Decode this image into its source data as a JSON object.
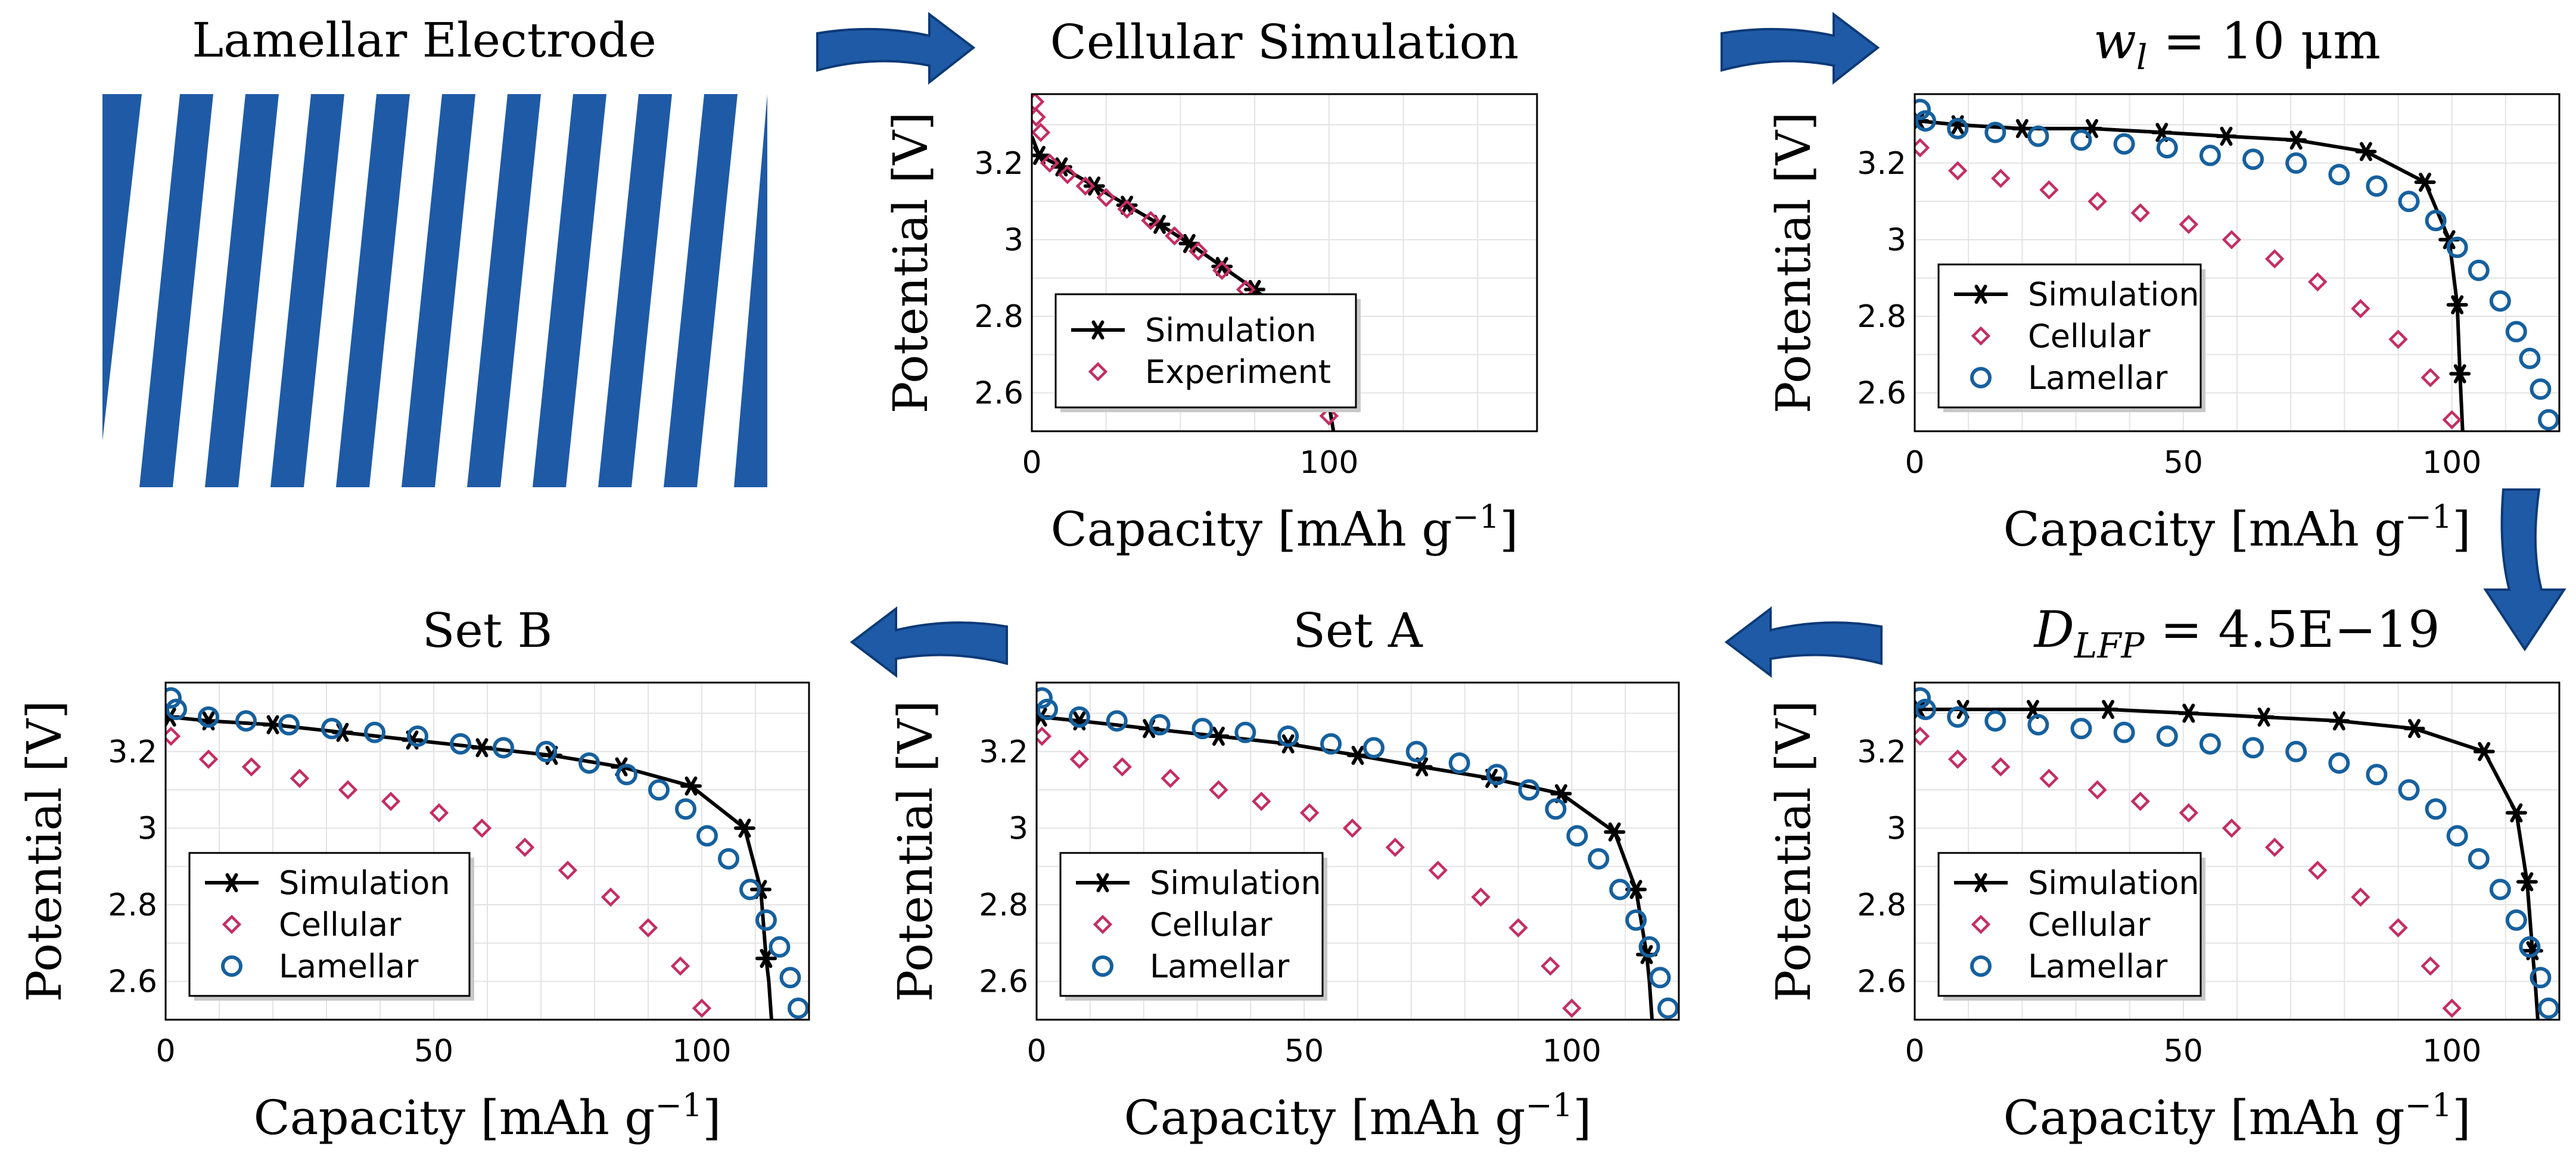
{
  "colors": {
    "blue": "#1f5aa6",
    "sim": "#000000",
    "cellular": "#c42d63",
    "lamellar": "#16609e",
    "grid": "#e3e3e3"
  },
  "illustration": {
    "title": "Lamellar Electrode"
  },
  "chart_data": [
    {
      "type": "scatter",
      "title": "Cellular Simulation",
      "xlabel": "Capacity [mAh g⁻¹]",
      "ylabel": "Potential [V]",
      "xlim": [
        0,
        170
      ],
      "ylim": [
        2.5,
        3.38
      ],
      "xticks": [
        0,
        100
      ],
      "yticks": [
        "2.6",
        "2.8",
        "3",
        "3.2"
      ],
      "grid": true,
      "legend_position": "bottom-left",
      "series": [
        {
          "name": "Simulation",
          "marker": "star",
          "line": true,
          "x": [
            0,
            2.5,
            10,
            21,
            32,
            43,
            53,
            64,
            75,
            86,
            94,
            99,
            101.5
          ],
          "y": [
            3.27,
            3.22,
            3.19,
            3.14,
            3.09,
            3.04,
            2.99,
            2.93,
            2.87,
            2.8,
            2.72,
            2.62,
            2.5
          ],
          "marker_x": [
            2.5,
            10,
            21,
            32,
            43,
            53,
            64,
            75,
            86,
            94,
            99
          ],
          "marker_y": [
            3.22,
            3.19,
            3.14,
            3.09,
            3.04,
            2.99,
            2.93,
            2.87,
            2.8,
            2.72,
            2.62
          ]
        },
        {
          "name": "Experiment",
          "marker": "diamond",
          "x": [
            1,
            1.5,
            3,
            6,
            12,
            18,
            25,
            32,
            40,
            48,
            56,
            64,
            72,
            80,
            88,
            95,
            100
          ],
          "y": [
            3.36,
            3.32,
            3.28,
            3.2,
            3.17,
            3.14,
            3.11,
            3.08,
            3.05,
            3.01,
            2.97,
            2.92,
            2.87,
            2.81,
            2.74,
            2.64,
            2.54
          ]
        }
      ]
    },
    {
      "type": "scatter",
      "title": "w_l = 10 μm",
      "xlabel": "Capacity [mAh g⁻¹]",
      "ylabel": "Potential [V]",
      "xlim": [
        0,
        120
      ],
      "ylim": [
        2.5,
        3.38
      ],
      "xticks": [
        0,
        50,
        100
      ],
      "yticks": [
        "2.6",
        "2.8",
        "3",
        "3.2"
      ],
      "grid": true,
      "legend_position": "bottom-left",
      "series": [
        {
          "name": "Simulation",
          "marker": "star",
          "line": true,
          "x": [
            0,
            0.7,
            8,
            20,
            33,
            46,
            58,
            71,
            84,
            95,
            99.5,
            101,
            101.5,
            102
          ],
          "y": [
            3.32,
            3.31,
            3.3,
            3.29,
            3.29,
            3.28,
            3.27,
            3.26,
            3.23,
            3.15,
            3.0,
            2.83,
            2.65,
            2.5
          ],
          "marker_x": [
            0.7,
            8,
            20,
            33,
            46,
            58,
            71,
            84,
            95,
            99.5,
            101,
            101.5
          ],
          "marker_y": [
            3.31,
            3.3,
            3.29,
            3.29,
            3.28,
            3.27,
            3.26,
            3.23,
            3.15,
            3.0,
            2.83,
            2.65
          ]
        },
        {
          "name": "Cellular",
          "marker": "diamond",
          "x": [
            1,
            8,
            16,
            25,
            34,
            42,
            51,
            59,
            67,
            75,
            83,
            90,
            96,
            100
          ],
          "y": [
            3.24,
            3.18,
            3.16,
            3.13,
            3.1,
            3.07,
            3.04,
            3.0,
            2.95,
            2.89,
            2.82,
            2.74,
            2.64,
            2.53
          ]
        },
        {
          "name": "Lamellar",
          "marker": "circle",
          "x": [
            1,
            2,
            8,
            15,
            23,
            31,
            39,
            47,
            55,
            63,
            71,
            79,
            86,
            92,
            97,
            101,
            105,
            109,
            112,
            114.5,
            116.5,
            118
          ],
          "y": [
            3.34,
            3.31,
            3.29,
            3.28,
            3.27,
            3.26,
            3.25,
            3.24,
            3.22,
            3.21,
            3.2,
            3.17,
            3.14,
            3.1,
            3.05,
            2.98,
            2.92,
            2.84,
            2.76,
            2.69,
            2.61,
            2.53
          ]
        }
      ]
    },
    {
      "type": "scatter",
      "title": "D_LFP = 4.5E−19",
      "xlabel": "Capacity [mAh g⁻¹]",
      "ylabel": "Potential [V]",
      "xlim": [
        0,
        120
      ],
      "ylim": [
        2.5,
        3.38
      ],
      "xticks": [
        0,
        50,
        100
      ],
      "yticks": [
        "2.6",
        "2.8",
        "3",
        "3.2"
      ],
      "grid": true,
      "legend_position": "bottom-left",
      "series": [
        {
          "name": "Simulation",
          "marker": "star",
          "line": true,
          "x": [
            0,
            0.8,
            9,
            22,
            36,
            51,
            65,
            79,
            93,
            106,
            112,
            114,
            115,
            115.5,
            116
          ],
          "y": [
            3.32,
            3.31,
            3.31,
            3.31,
            3.31,
            3.3,
            3.29,
            3.28,
            3.26,
            3.2,
            3.04,
            2.86,
            2.68,
            2.6,
            2.5
          ],
          "marker_x": [
            0.8,
            9,
            22,
            36,
            51,
            65,
            79,
            93,
            106,
            112,
            114,
            115
          ],
          "marker_y": [
            3.31,
            3.31,
            3.31,
            3.31,
            3.3,
            3.29,
            3.28,
            3.26,
            3.2,
            3.04,
            2.86,
            2.68
          ]
        },
        {
          "name": "Cellular",
          "marker": "diamond",
          "x": [
            1,
            8,
            16,
            25,
            34,
            42,
            51,
            59,
            67,
            75,
            83,
            90,
            96,
            100
          ],
          "y": [
            3.24,
            3.18,
            3.16,
            3.13,
            3.1,
            3.07,
            3.04,
            3.0,
            2.95,
            2.89,
            2.82,
            2.74,
            2.64,
            2.53
          ]
        },
        {
          "name": "Lamellar",
          "marker": "circle",
          "x": [
            1,
            2,
            8,
            15,
            23,
            31,
            39,
            47,
            55,
            63,
            71,
            79,
            86,
            92,
            97,
            101,
            105,
            109,
            112,
            114.5,
            116.5,
            118
          ],
          "y": [
            3.34,
            3.31,
            3.29,
            3.28,
            3.27,
            3.26,
            3.25,
            3.24,
            3.22,
            3.21,
            3.2,
            3.17,
            3.14,
            3.1,
            3.05,
            2.98,
            2.92,
            2.84,
            2.76,
            2.69,
            2.61,
            2.53
          ]
        }
      ]
    },
    {
      "type": "scatter",
      "title": "Set A",
      "xlabel": "Capacity [mAh g⁻¹]",
      "ylabel": "Potential [V]",
      "xlim": [
        0,
        120
      ],
      "ylim": [
        2.5,
        3.38
      ],
      "xticks": [
        0,
        50,
        100
      ],
      "yticks": [
        "2.6",
        "2.8",
        "3",
        "3.2"
      ],
      "grid": true,
      "legend_position": "bottom-left",
      "series": [
        {
          "name": "Simulation",
          "marker": "star",
          "line": true,
          "x": [
            0,
            0.8,
            8,
            21,
            34,
            47,
            60,
            72,
            85,
            98,
            108,
            112,
            114,
            114.5,
            115
          ],
          "y": [
            3.3,
            3.29,
            3.28,
            3.26,
            3.24,
            3.22,
            3.19,
            3.16,
            3.13,
            3.09,
            2.99,
            2.84,
            2.67,
            2.6,
            2.5
          ],
          "marker_x": [
            0.8,
            8,
            21,
            34,
            47,
            60,
            72,
            85,
            98,
            108,
            112,
            114
          ],
          "marker_y": [
            3.29,
            3.28,
            3.26,
            3.24,
            3.22,
            3.19,
            3.16,
            3.13,
            3.09,
            2.99,
            2.84,
            2.67
          ]
        },
        {
          "name": "Cellular",
          "marker": "diamond",
          "x": [
            1,
            8,
            16,
            25,
            34,
            42,
            51,
            59,
            67,
            75,
            83,
            90,
            96,
            100
          ],
          "y": [
            3.24,
            3.18,
            3.16,
            3.13,
            3.1,
            3.07,
            3.04,
            3.0,
            2.95,
            2.89,
            2.82,
            2.74,
            2.64,
            2.53
          ]
        },
        {
          "name": "Lamellar",
          "marker": "circle",
          "x": [
            1,
            2,
            8,
            15,
            23,
            31,
            39,
            47,
            55,
            63,
            71,
            79,
            86,
            92,
            97,
            101,
            105,
            109,
            112,
            114.5,
            116.5,
            118
          ],
          "y": [
            3.34,
            3.31,
            3.29,
            3.28,
            3.27,
            3.26,
            3.25,
            3.24,
            3.22,
            3.21,
            3.2,
            3.17,
            3.14,
            3.1,
            3.05,
            2.98,
            2.92,
            2.84,
            2.76,
            2.69,
            2.61,
            2.53
          ]
        }
      ]
    },
    {
      "type": "scatter",
      "title": "Set B",
      "xlabel": "Capacity [mAh g⁻¹]",
      "ylabel": "Potential [V]",
      "xlim": [
        0,
        120
      ],
      "ylim": [
        2.5,
        3.38
      ],
      "xticks": [
        0,
        50,
        100
      ],
      "yticks": [
        "2.6",
        "2.8",
        "3",
        "3.2"
      ],
      "grid": true,
      "legend_position": "bottom-left",
      "series": [
        {
          "name": "Simulation",
          "marker": "star",
          "line": true,
          "x": [
            0,
            0.8,
            8,
            20,
            33,
            46,
            59,
            72,
            85,
            98,
            108,
            111,
            112,
            112.5,
            113
          ],
          "y": [
            3.3,
            3.29,
            3.28,
            3.27,
            3.25,
            3.23,
            3.21,
            3.19,
            3.16,
            3.11,
            3.0,
            2.84,
            2.66,
            2.6,
            2.5
          ],
          "marker_x": [
            0.8,
            8,
            20,
            33,
            46,
            59,
            72,
            85,
            98,
            108,
            111,
            112
          ],
          "marker_y": [
            3.29,
            3.28,
            3.27,
            3.25,
            3.23,
            3.21,
            3.19,
            3.16,
            3.11,
            3.0,
            2.84,
            2.66
          ]
        },
        {
          "name": "Cellular",
          "marker": "diamond",
          "x": [
            1,
            8,
            16,
            25,
            34,
            42,
            51,
            59,
            67,
            75,
            83,
            90,
            96,
            100
          ],
          "y": [
            3.24,
            3.18,
            3.16,
            3.13,
            3.1,
            3.07,
            3.04,
            3.0,
            2.95,
            2.89,
            2.82,
            2.74,
            2.64,
            2.53
          ]
        },
        {
          "name": "Lamellar",
          "marker": "circle",
          "x": [
            1,
            2,
            8,
            15,
            23,
            31,
            39,
            47,
            55,
            63,
            71,
            79,
            86,
            92,
            97,
            101,
            105,
            109,
            112,
            114.5,
            116.5,
            118
          ],
          "y": [
            3.34,
            3.31,
            3.29,
            3.28,
            3.27,
            3.26,
            3.25,
            3.24,
            3.22,
            3.21,
            3.2,
            3.17,
            3.14,
            3.1,
            3.05,
            2.98,
            2.92,
            2.84,
            2.76,
            2.69,
            2.61,
            2.53
          ]
        }
      ]
    }
  ]
}
